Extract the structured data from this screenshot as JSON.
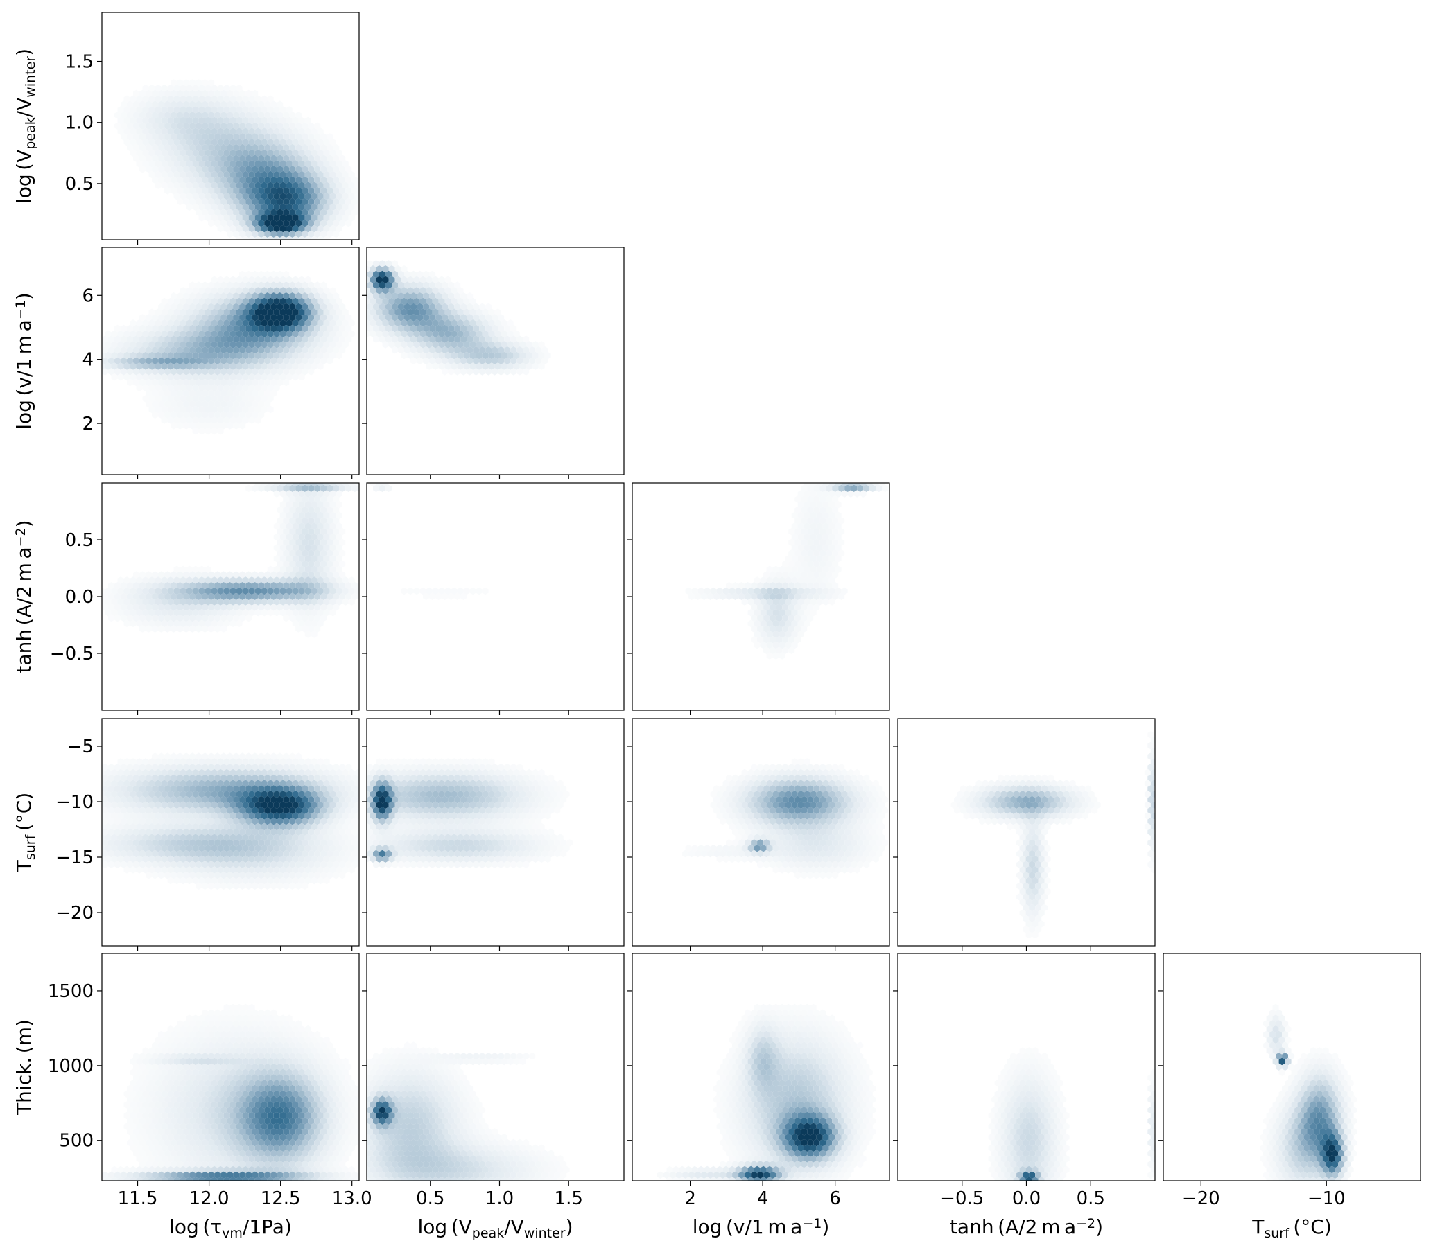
{
  "chart_data": {
    "type": "corner-hexbin",
    "colormap": [
      "#ffffff",
      "#e3ebf1",
      "#b3c8d7",
      "#6d96b2",
      "#2f6a8e",
      "#0b3a5a"
    ],
    "variables": [
      {
        "key": "tau",
        "label_base": "log (τ",
        "label_sub": "vm",
        "label_tail": "/1Pa)",
        "range": [
          11.25,
          13.05
        ],
        "ticks": [
          11.5,
          12.0,
          12.5,
          13.0
        ],
        "tick_labels": [
          "11.5",
          "12.0",
          "12.5",
          "13.0"
        ]
      },
      {
        "key": "vratio",
        "label_base": "log (V",
        "label_sub": "peak",
        "label_mid": "/V",
        "label_sub2": "winter",
        "label_tail": ")",
        "range": [
          0.04,
          1.9
        ],
        "ticks": [
          0.5,
          1.0,
          1.5
        ],
        "tick_labels": [
          "0.5",
          "1.0",
          "1.5"
        ]
      },
      {
        "key": "v",
        "label_base": "log (v/1 m a",
        "label_sup": "−1",
        "label_tail": ")",
        "range": [
          0.4,
          7.5
        ],
        "ticks": [
          2,
          4,
          6
        ],
        "tick_labels": [
          "2",
          "4",
          "6"
        ]
      },
      {
        "key": "A",
        "label_base": "tanh (A/2 m a",
        "label_sup": "−2",
        "label_tail": ")",
        "range": [
          -1.0,
          1.0
        ],
        "ticks": [
          -0.5,
          0.0,
          0.5
        ],
        "tick_labels": [
          "−0.5",
          "0.0",
          "0.5"
        ]
      },
      {
        "key": "T",
        "label_base": "T",
        "label_sub": "surf",
        "label_tail": " (°C)",
        "range": [
          -23,
          -2.5
        ],
        "ticks": [
          -20,
          -15,
          -10,
          -5
        ],
        "tick_labels": [
          "−20",
          "−15",
          "−10",
          "−5"
        ]
      },
      {
        "key": "H",
        "label_base": "Thick. (m)",
        "range": [
          230,
          1750
        ],
        "ticks": [
          500,
          1000,
          1500
        ],
        "tick_labels": [
          "500",
          "1000",
          "1500"
        ]
      }
    ],
    "x_tick_subset": {
      "T": [
        -20,
        -10
      ],
      "T_labels": [
        "−20",
        "−10"
      ]
    },
    "panels": [
      {
        "row": 1,
        "col": 0,
        "blobs": [
          [
            12.5,
            0.17,
            0.12,
            0.06,
            1.0
          ],
          [
            12.55,
            0.35,
            0.2,
            0.15,
            0.65
          ],
          [
            12.1,
            0.8,
            0.3,
            0.22,
            0.28
          ],
          [
            11.8,
            1.05,
            0.25,
            0.15,
            0.16
          ],
          [
            12.4,
            0.55,
            0.25,
            0.2,
            0.45
          ]
        ]
      },
      {
        "row": 2,
        "col": 0,
        "blobs": [
          [
            12.5,
            5.5,
            0.15,
            0.4,
            1.0
          ],
          [
            12.3,
            5.0,
            0.3,
            0.7,
            0.55
          ],
          [
            11.9,
            4.2,
            0.35,
            0.5,
            0.35
          ],
          [
            11.6,
            3.9,
            0.25,
            0.15,
            0.3
          ],
          [
            12.0,
            2.6,
            0.3,
            0.6,
            0.1
          ]
        ]
      },
      {
        "row": 2,
        "col": 1,
        "blobs": [
          [
            0.15,
            6.5,
            0.06,
            0.25,
            1.0
          ],
          [
            0.35,
            5.6,
            0.18,
            0.5,
            0.6
          ],
          [
            0.65,
            4.8,
            0.2,
            0.45,
            0.45
          ],
          [
            0.95,
            4.1,
            0.2,
            0.3,
            0.35
          ]
        ]
      },
      {
        "row": 3,
        "col": 0,
        "blobs": [
          [
            12.3,
            0.05,
            0.35,
            0.07,
            0.6
          ],
          [
            12.7,
            0.97,
            0.2,
            0.03,
            0.4
          ],
          [
            12.7,
            0.45,
            0.12,
            0.4,
            0.25
          ],
          [
            11.8,
            -0.05,
            0.3,
            0.15,
            0.2
          ]
        ]
      },
      {
        "row": 3,
        "col": 1,
        "blobs": [
          [
            0.6,
            0.03,
            0.4,
            0.03,
            0.06
          ],
          [
            0.15,
            0.97,
            0.05,
            0.03,
            0.15
          ]
        ]
      },
      {
        "row": 3,
        "col": 2,
        "blobs": [
          [
            6.5,
            0.97,
            0.4,
            0.03,
            0.6
          ],
          [
            4.0,
            0.03,
            1.2,
            0.04,
            0.2
          ],
          [
            4.4,
            -0.15,
            0.4,
            0.2,
            0.25
          ],
          [
            5.5,
            0.5,
            0.5,
            0.4,
            0.1
          ]
        ]
      },
      {
        "row": 4,
        "col": 0,
        "blobs": [
          [
            12.5,
            -10.5,
            0.2,
            1.2,
            0.9
          ],
          [
            12.1,
            -9.0,
            0.5,
            1.5,
            0.5
          ],
          [
            12.0,
            -13.8,
            0.5,
            1.2,
            0.35
          ],
          [
            12.3,
            -15.5,
            0.4,
            1.5,
            0.15
          ]
        ]
      },
      {
        "row": 4,
        "col": 1,
        "blobs": [
          [
            0.15,
            -10.0,
            0.05,
            1.2,
            0.9
          ],
          [
            0.6,
            -9.5,
            0.4,
            1.5,
            0.45
          ],
          [
            0.15,
            -14.8,
            0.05,
            0.4,
            0.65
          ],
          [
            0.7,
            -14.0,
            0.4,
            1.0,
            0.3
          ]
        ]
      },
      {
        "row": 4,
        "col": 2,
        "blobs": [
          [
            5.0,
            -10.0,
            1.0,
            1.5,
            0.65
          ],
          [
            3.9,
            -14.0,
            0.2,
            0.4,
            0.55
          ],
          [
            5.5,
            -14.0,
            1.0,
            1.5,
            0.2
          ],
          [
            3.0,
            -14.5,
            1.0,
            0.5,
            0.08
          ]
        ]
      },
      {
        "row": 4,
        "col": 3,
        "blobs": [
          [
            0.0,
            -10.0,
            0.25,
            1.0,
            0.5
          ],
          [
            0.05,
            -16.0,
            0.06,
            3.0,
            0.3
          ],
          [
            0.98,
            -10.0,
            0.02,
            3.0,
            0.35
          ]
        ]
      },
      {
        "row": 5,
        "col": 0,
        "blobs": [
          [
            12.5,
            650,
            0.2,
            200,
            0.6
          ],
          [
            12.1,
            250,
            0.4,
            30,
            0.7
          ],
          [
            12.2,
            700,
            0.4,
            350,
            0.25
          ],
          [
            11.9,
            1040,
            0.2,
            20,
            0.15
          ]
        ]
      },
      {
        "row": 5,
        "col": 1,
        "blobs": [
          [
            0.15,
            690,
            0.05,
            60,
            0.8
          ],
          [
            0.35,
            600,
            0.25,
            250,
            0.35
          ],
          [
            0.7,
            300,
            0.4,
            120,
            0.25
          ],
          [
            0.9,
            1050,
            0.25,
            20,
            0.12
          ]
        ]
      },
      {
        "row": 5,
        "col": 2,
        "blobs": [
          [
            5.3,
            520,
            0.5,
            100,
            0.85
          ],
          [
            3.9,
            270,
            0.4,
            40,
            0.9
          ],
          [
            4.9,
            750,
            1.0,
            300,
            0.4
          ],
          [
            4.0,
            1050,
            0.3,
            150,
            0.25
          ],
          [
            2.5,
            270,
            0.8,
            30,
            0.2
          ]
        ]
      },
      {
        "row": 5,
        "col": 3,
        "blobs": [
          [
            0.02,
            250,
            0.05,
            30,
            0.8
          ],
          [
            0.02,
            500,
            0.15,
            300,
            0.3
          ],
          [
            0.98,
            600,
            0.02,
            200,
            0.2
          ]
        ]
      },
      {
        "row": 5,
        "col": 4,
        "blobs": [
          [
            -13.5,
            1040,
            0.3,
            30,
            0.9
          ],
          [
            -10.5,
            650,
            1.2,
            200,
            0.55
          ],
          [
            -9.5,
            400,
            0.6,
            100,
            0.8
          ],
          [
            -12.0,
            450,
            1.5,
            200,
            0.3
          ],
          [
            -14.0,
            1200,
            0.5,
            100,
            0.25
          ]
        ]
      }
    ]
  }
}
